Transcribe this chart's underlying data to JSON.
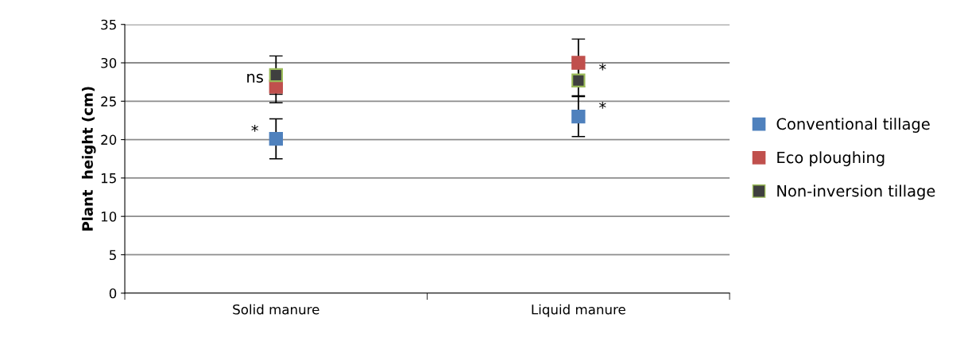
{
  "chart_data": {
    "type": "scatter",
    "ylabel": "Plant  height (cm)",
    "categories": [
      "Solid manure",
      "Liquid manure"
    ],
    "series": [
      {
        "name": "Conventional tillage",
        "color": "#4f81bd",
        "values": [
          20.1,
          23.0
        ],
        "errors": [
          2.6,
          2.6
        ]
      },
      {
        "name": "Eco ploughing",
        "color": "#c0504d",
        "values": [
          26.9,
          30.0
        ],
        "errors": [
          2.1,
          3.1
        ]
      },
      {
        "name": "Non-inversion tillage",
        "color": "#3f3f3f",
        "values": [
          28.4,
          27.7
        ],
        "errors": [
          2.5,
          2.0
        ]
      }
    ],
    "ylim": [
      0,
      35
    ],
    "yticks": [
      0,
      5,
      10,
      15,
      20,
      25,
      30,
      35
    ],
    "grid": "y",
    "legend": "right",
    "marker": "square",
    "annotations": [
      {
        "text": "ns",
        "x": "Solid manure",
        "y": 28.0
      },
      {
        "text": "*",
        "x": "Solid manure",
        "y": 21.0
      },
      {
        "text": "*",
        "x": "Liquid manure",
        "y": 29.0
      },
      {
        "text": "*",
        "x": "Liquid manure",
        "y": 24.0
      }
    ]
  }
}
